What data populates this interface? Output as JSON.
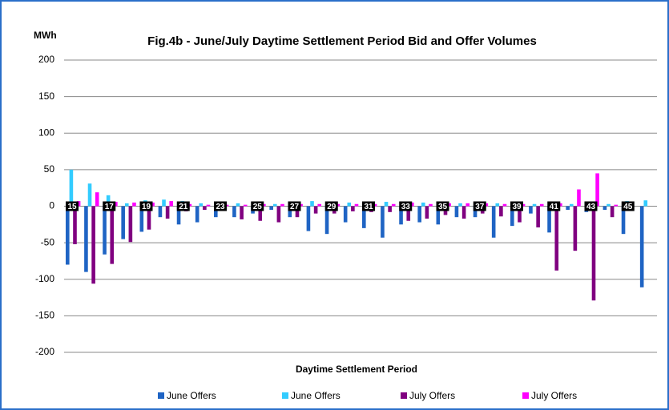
{
  "chart_data": {
    "type": "bar",
    "title": "Fig.4b - June/July Daytime Settlement Period Bid and Offer Volumes",
    "y_label": "MWh",
    "x_label": "Daytime Settlement Period",
    "categories": [
      "15",
      null,
      "17",
      null,
      "19",
      null,
      "21",
      null,
      "23",
      null,
      "25",
      null,
      "27",
      null,
      "29",
      null,
      "31",
      null,
      "33",
      null,
      "35",
      null,
      "37",
      null,
      "39",
      null,
      "41",
      null,
      "43",
      null,
      "45",
      null
    ],
    "series": [
      {
        "name": "June Offers",
        "color": "#1f64c4",
        "values": [
          -80,
          -90,
          -66,
          -45,
          -35,
          -15,
          -25,
          -22,
          -15,
          -15,
          -10,
          -5,
          -15,
          -34,
          -38,
          -22,
          -30,
          -43,
          -25,
          -22,
          -25,
          -15,
          -15,
          -43,
          -27,
          -10,
          -36,
          -5,
          -8,
          -5,
          -38,
          -111
        ]
      },
      {
        "name": "June Offers",
        "color": "#33ccff",
        "values": [
          50,
          31,
          15,
          4,
          8,
          9,
          7,
          4,
          3,
          4,
          5,
          3,
          5,
          7,
          6,
          5,
          4,
          6,
          4,
          5,
          3,
          4,
          3,
          4,
          3,
          3,
          4,
          3,
          3,
          3,
          7,
          8
        ]
      },
      {
        "name": "July Offers",
        "color": "#800080",
        "values": [
          -52,
          -106,
          -79,
          -49,
          -32,
          -17,
          -7,
          -5,
          -5,
          -18,
          -20,
          -22,
          -15,
          -10,
          -10,
          -7,
          -8,
          -8,
          -20,
          -17,
          -12,
          -17,
          -10,
          -14,
          -22,
          -29,
          -88,
          -61,
          -129,
          -15,
          -2,
          0
        ]
      },
      {
        "name": "July Offers",
        "color": "#ff00ff",
        "values": [
          7,
          19,
          6,
          5,
          5,
          7,
          3,
          2,
          2,
          2,
          3,
          3,
          3,
          3,
          3,
          3,
          3,
          3,
          5,
          3,
          4,
          4,
          4,
          3,
          3,
          3,
          4,
          23,
          45,
          2,
          0,
          0
        ]
      }
    ],
    "ylim": [
      -200,
      200
    ],
    "yticks": [
      -200,
      -150,
      -100,
      -50,
      0,
      50,
      100,
      150,
      200
    ],
    "grid": true
  }
}
